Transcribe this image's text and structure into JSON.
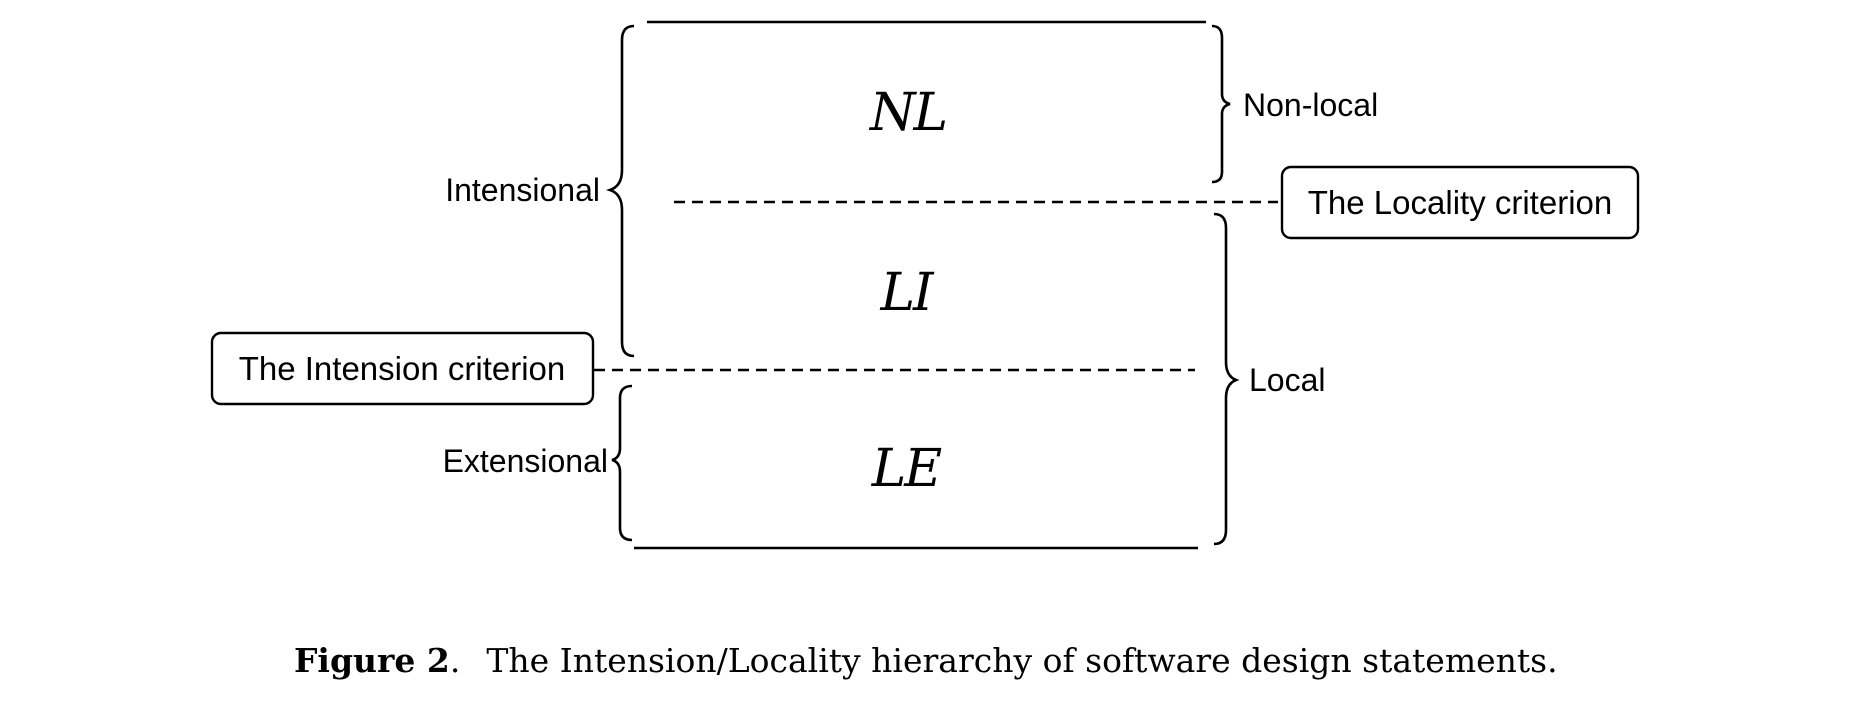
{
  "regions": {
    "nl": "NL",
    "li": "LI",
    "le": "LE"
  },
  "brace_labels": {
    "intensional": "Intensional",
    "extensional": "Extensional",
    "non_local": "Non-local",
    "local": "Local"
  },
  "criteria": {
    "locality": "The Locality criterion",
    "intension": "The Intension criterion"
  },
  "caption": {
    "label": "Figure 2",
    "punct": ".",
    "text": "The Intension/Locality hierarchy of software design statements."
  }
}
